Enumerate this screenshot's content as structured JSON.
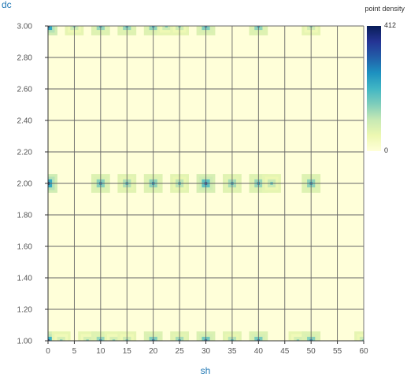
{
  "chart_data": {
    "type": "heatmap",
    "xlabel": "sh",
    "ylabel": "dc",
    "xlim": [
      0,
      60
    ],
    "ylim": [
      1.0,
      3.0
    ],
    "x_ticks": [
      "0",
      "5",
      "10",
      "15",
      "20",
      "25",
      "30",
      "35",
      "40",
      "45",
      "50",
      "55",
      "60"
    ],
    "y_ticks": [
      "1.00",
      "1.20",
      "1.40",
      "1.60",
      "1.80",
      "2.00",
      "2.20",
      "2.40",
      "2.60",
      "2.80",
      "3.00"
    ],
    "grid": true,
    "legend": {
      "title": "point density",
      "max_label": "412",
      "min_label": "0",
      "placement": "right"
    },
    "colors": [
      "#ffffd9",
      "#edf8b1",
      "#c7e9b4",
      "#7fcdbb",
      "#41b6c4",
      "#1d91c0",
      "#225ea8",
      "#253494",
      "#081d58"
    ],
    "density_max": 412,
    "points": [
      {
        "x": 0,
        "y": 3.0,
        "v": 412
      },
      {
        "x": 5,
        "y": 3.0,
        "v": 170
      },
      {
        "x": 10,
        "y": 3.0,
        "v": 250
      },
      {
        "x": 15,
        "y": 3.0,
        "v": 250
      },
      {
        "x": 20,
        "y": 3.0,
        "v": 260
      },
      {
        "x": 22.5,
        "y": 3.0,
        "v": 170
      },
      {
        "x": 25,
        "y": 3.0,
        "v": 170
      },
      {
        "x": 30,
        "y": 3.0,
        "v": 280
      },
      {
        "x": 40,
        "y": 3.0,
        "v": 260
      },
      {
        "x": 50,
        "y": 3.0,
        "v": 160
      },
      {
        "x": 0,
        "y": 2.0,
        "v": 412
      },
      {
        "x": 10,
        "y": 2.0,
        "v": 270
      },
      {
        "x": 15,
        "y": 2.0,
        "v": 220
      },
      {
        "x": 20,
        "y": 2.0,
        "v": 260
      },
      {
        "x": 25,
        "y": 2.0,
        "v": 200
      },
      {
        "x": 30,
        "y": 2.0,
        "v": 330
      },
      {
        "x": 35,
        "y": 2.0,
        "v": 230
      },
      {
        "x": 40,
        "y": 2.0,
        "v": 250
      },
      {
        "x": 42.5,
        "y": 2.0,
        "v": 180
      },
      {
        "x": 50,
        "y": 2.0,
        "v": 260
      },
      {
        "x": 0,
        "y": 1.0,
        "v": 380
      },
      {
        "x": 2.5,
        "y": 1.0,
        "v": 150
      },
      {
        "x": 7.5,
        "y": 1.0,
        "v": 150
      },
      {
        "x": 10,
        "y": 1.0,
        "v": 250
      },
      {
        "x": 12.5,
        "y": 1.0,
        "v": 150
      },
      {
        "x": 15,
        "y": 1.0,
        "v": 170
      },
      {
        "x": 20,
        "y": 1.0,
        "v": 280
      },
      {
        "x": 25,
        "y": 1.0,
        "v": 230
      },
      {
        "x": 30,
        "y": 1.0,
        "v": 300
      },
      {
        "x": 35,
        "y": 1.0,
        "v": 210
      },
      {
        "x": 40,
        "y": 1.0,
        "v": 290
      },
      {
        "x": 47.5,
        "y": 1.0,
        "v": 150
      },
      {
        "x": 50,
        "y": 1.0,
        "v": 270
      },
      {
        "x": 60,
        "y": 1.0,
        "v": 170
      }
    ]
  }
}
